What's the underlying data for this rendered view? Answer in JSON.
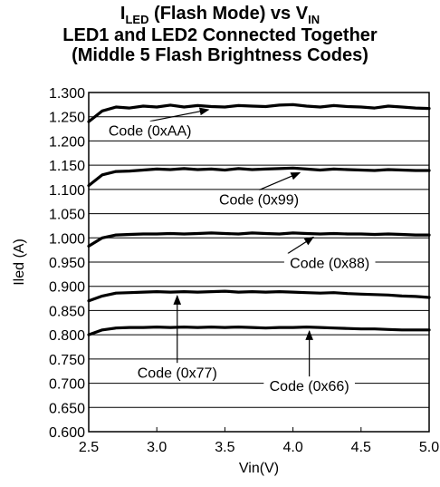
{
  "title": {
    "line1_main": "I",
    "line1_sub": "LED",
    "line1_mid": " (Flash Mode) vs V",
    "line1_sub2": "IN",
    "line2": "LED1 and LED2 Connected Together",
    "line3": "(Middle 5 Flash Brightness Codes)"
  },
  "chart_data": {
    "type": "line",
    "xlabel": "Vin(V)",
    "ylabel": "Iled (A)",
    "xlim": [
      2.5,
      5.0
    ],
    "ylim": [
      0.6,
      1.3
    ],
    "xticks": [
      "2.5",
      "3.0",
      "3.5",
      "4.0",
      "4.5",
      "5.0"
    ],
    "yticks": [
      "0.600",
      "0.650",
      "0.700",
      "0.750",
      "0.800",
      "0.850",
      "0.900",
      "0.950",
      "1.000",
      "1.050",
      "1.100",
      "1.150",
      "1.200",
      "1.250",
      "1.300"
    ],
    "grid": "horizontal",
    "x": [
      2.5,
      2.6,
      2.7,
      2.8,
      2.9,
      3.0,
      3.1,
      3.2,
      3.3,
      3.4,
      3.5,
      3.6,
      3.7,
      3.8,
      3.9,
      4.0,
      4.1,
      4.2,
      4.3,
      4.4,
      4.5,
      4.6,
      4.7,
      4.8,
      4.9,
      5.0
    ],
    "series": [
      {
        "name": "Code (0xAA)",
        "values": [
          1.24,
          1.262,
          1.27,
          1.268,
          1.272,
          1.27,
          1.274,
          1.27,
          1.273,
          1.271,
          1.27,
          1.273,
          1.272,
          1.271,
          1.274,
          1.275,
          1.272,
          1.27,
          1.273,
          1.271,
          1.27,
          1.268,
          1.272,
          1.27,
          1.268,
          1.267
        ]
      },
      {
        "name": "Code (0x99)",
        "values": [
          1.108,
          1.13,
          1.137,
          1.138,
          1.14,
          1.142,
          1.141,
          1.143,
          1.141,
          1.142,
          1.14,
          1.143,
          1.141,
          1.142,
          1.143,
          1.144,
          1.142,
          1.14,
          1.142,
          1.141,
          1.14,
          1.139,
          1.141,
          1.14,
          1.139,
          1.139
        ]
      },
      {
        "name": "Code (0x88)",
        "values": [
          0.983,
          1.0,
          1.006,
          1.007,
          1.008,
          1.008,
          1.009,
          1.008,
          1.009,
          1.01,
          1.009,
          1.008,
          1.01,
          1.009,
          1.008,
          1.01,
          1.009,
          1.008,
          1.009,
          1.008,
          1.008,
          1.007,
          1.008,
          1.007,
          1.006,
          1.006
        ]
      },
      {
        "name": "Code (0x77)",
        "values": [
          0.87,
          0.88,
          0.886,
          0.887,
          0.888,
          0.889,
          0.888,
          0.889,
          0.888,
          0.889,
          0.89,
          0.888,
          0.889,
          0.888,
          0.889,
          0.888,
          0.887,
          0.886,
          0.887,
          0.885,
          0.884,
          0.883,
          0.882,
          0.88,
          0.879,
          0.877
        ]
      },
      {
        "name": "Code (0x66)",
        "values": [
          0.8,
          0.81,
          0.814,
          0.815,
          0.815,
          0.816,
          0.815,
          0.816,
          0.815,
          0.816,
          0.815,
          0.816,
          0.815,
          0.814,
          0.815,
          0.815,
          0.816,
          0.815,
          0.814,
          0.813,
          0.812,
          0.812,
          0.811,
          0.81,
          0.81,
          0.81
        ]
      }
    ],
    "annotations": [
      {
        "label": "Code (0xAA)",
        "series": 0,
        "point_x": 3.38,
        "point_y": 1.272,
        "label_x": 2.95,
        "label_y": 1.222
      },
      {
        "label": "Code (0x99)",
        "series": 1,
        "point_x": 4.05,
        "point_y": 1.142,
        "label_x": 3.75,
        "label_y": 1.08
      },
      {
        "label": "Code (0x88)",
        "series": 2,
        "point_x": 4.15,
        "point_y": 1.009,
        "label_x": 4.27,
        "label_y": 0.949
      },
      {
        "label": "Code (0x77)",
        "series": 3,
        "point_x": 3.15,
        "point_y": 0.888,
        "label_x": 3.15,
        "label_y": 0.723
      },
      {
        "label": "Code (0x66)",
        "series": 4,
        "point_x": 4.12,
        "point_y": 0.815,
        "label_x": 4.12,
        "label_y": 0.695
      }
    ]
  }
}
